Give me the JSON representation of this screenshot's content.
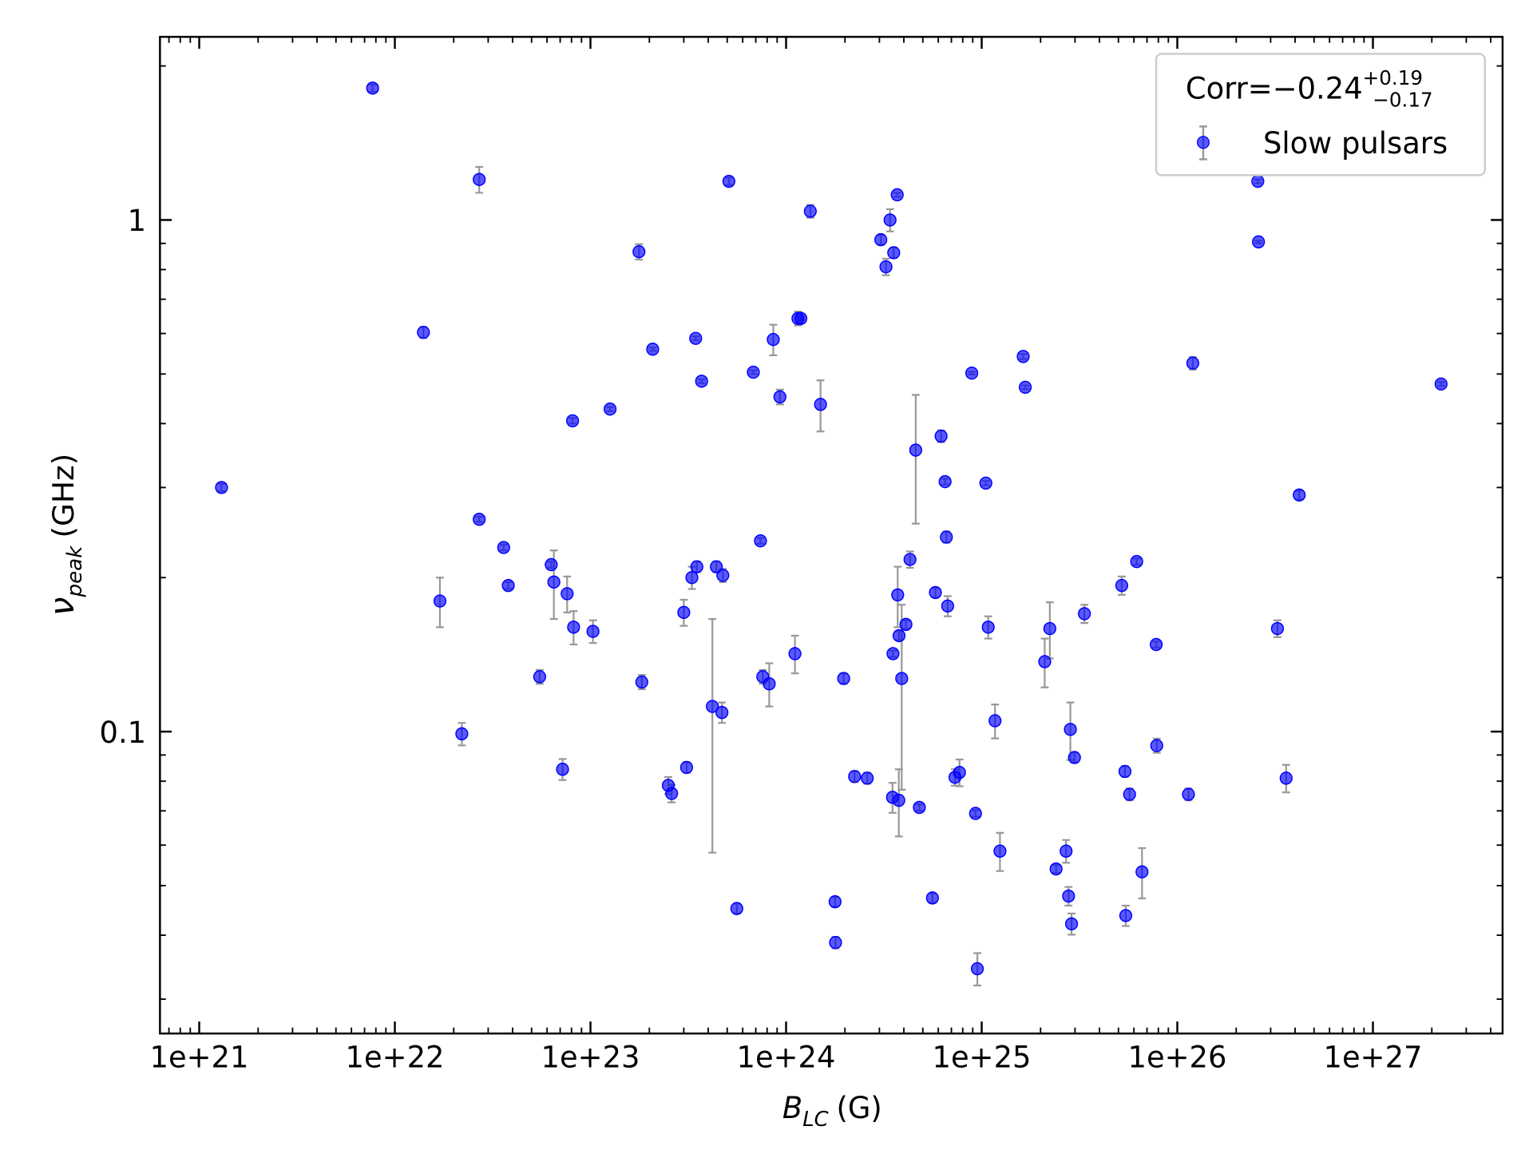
{
  "chart_data": {
    "type": "scatter",
    "x_label": {
      "base": "B",
      "sub": "LC",
      "unit": "(G)"
    },
    "y_label": {
      "base": "ν",
      "sub": "peak",
      "unit": "(GHz)"
    },
    "x_scale": "log",
    "y_scale": "log",
    "xlim": [
      6.3e+20,
      4.6e+27
    ],
    "ylim": [
      0.0257,
      2.28
    ],
    "xticks": [
      {
        "value": 1e+21,
        "label": "1e+21"
      },
      {
        "value": 1e+22,
        "label": "1e+22"
      },
      {
        "value": 1e+23,
        "label": "1e+23"
      },
      {
        "value": 1e+24,
        "label": "1e+24"
      },
      {
        "value": 1e+25,
        "label": "1e+25"
      },
      {
        "value": 1e+26,
        "label": "1e+26"
      },
      {
        "value": 1e+27,
        "label": "1e+27"
      }
    ],
    "yticks": [
      0.1,
      1
    ],
    "minor_ticks": true,
    "grid": false,
    "legend": "upper right",
    "legend_title": {
      "text": "Corr=−0.24",
      "plus": "+0.19",
      "minus": "−0.17"
    },
    "series": [
      {
        "name": "Slow pulsars",
        "color": "#0000ff",
        "error_color": "#999999",
        "x": [
          1.3e+21,
          7.7e+21,
          2.7e+22,
          1.4e+22,
          1.7e+22,
          2.2e+22,
          2.7e+22,
          3.6e+22,
          3.8e+22,
          5.5e+22,
          6.3e+22,
          6.5e+22,
          7.2e+22,
          7.6e+22,
          8.1e+22,
          8.2e+22,
          1.03e+23,
          1.26e+23,
          1.77e+23,
          1.83e+23,
          2.08e+23,
          2.5e+23,
          2.6e+23,
          3e+23,
          3.1e+23,
          3.3e+23,
          3.45e+23,
          3.5e+23,
          3.7e+23,
          4.2e+23,
          4.4e+23,
          4.7e+23,
          4.75e+23,
          5.1e+23,
          5.6e+23,
          6.8e+23,
          7.4e+23,
          7.6e+23,
          8.2e+23,
          8.6e+23,
          9.3e+23,
          1.11e+24,
          1.15e+24,
          1.19e+24,
          1.33e+24,
          1.5e+24,
          1.78e+24,
          1.79e+24,
          1.97e+24,
          2.24e+24,
          2.6e+24,
          3.05e+24,
          3.24e+24,
          3.4e+24,
          3.5e+24,
          3.52e+24,
          3.55e+24,
          3.7e+24,
          3.72e+24,
          3.77e+24,
          3.78e+24,
          3.9e+24,
          4.1e+24,
          4.3e+24,
          4.6e+24,
          4.8e+24,
          5.6e+24,
          5.8e+24,
          6.2e+24,
          6.5e+24,
          6.6e+24,
          6.7e+24,
          7.3e+24,
          7.7e+24,
          8.9e+24,
          9.3e+24,
          9.5e+24,
          1.05e+25,
          1.08e+25,
          1.17e+25,
          1.24e+25,
          1.63e+25,
          1.67e+25,
          2.1e+25,
          2.23e+25,
          2.4e+25,
          2.7e+25,
          2.78e+25,
          2.84e+25,
          2.88e+25,
          2.98e+25,
          3.35e+25,
          5.2e+25,
          5.4e+25,
          5.45e+25,
          5.7e+25,
          6.2e+25,
          6.6e+25,
          7.8e+25,
          7.85e+25,
          1.14e+26,
          1.2e+26,
          2.58e+26,
          2.6e+26,
          3.25e+26,
          3.6e+26,
          4.2e+26,
          2.23e+27
        ],
        "values": [
          0.3,
          1.81,
          1.2,
          0.603,
          0.18,
          0.099,
          0.26,
          0.229,
          0.193,
          0.128,
          0.212,
          0.196,
          0.0844,
          0.186,
          0.405,
          0.16,
          0.157,
          0.427,
          0.867,
          0.125,
          0.559,
          0.0785,
          0.0757,
          0.171,
          0.0851,
          0.2,
          0.587,
          0.21,
          0.484,
          0.112,
          0.21,
          0.109,
          0.202,
          1.19,
          0.0451,
          0.504,
          0.236,
          0.128,
          0.124,
          0.584,
          0.451,
          0.142,
          0.642,
          0.642,
          1.04,
          0.436,
          0.0465,
          0.0387,
          0.127,
          0.0817,
          0.0811,
          0.915,
          0.81,
          1.0,
          0.0744,
          0.142,
          0.863,
          1.12,
          0.185,
          0.0734,
          0.154,
          0.127,
          0.162,
          0.217,
          0.355,
          0.0711,
          0.0473,
          0.187,
          0.378,
          0.308,
          0.24,
          0.176,
          0.0814,
          0.0832,
          0.502,
          0.0692,
          0.0344,
          0.306,
          0.16,
          0.105,
          0.0584,
          0.541,
          0.471,
          0.137,
          0.159,
          0.0539,
          0.0584,
          0.0477,
          0.101,
          0.0421,
          0.089,
          0.17,
          0.193,
          0.0836,
          0.0437,
          0.0754,
          0.215,
          0.0532,
          0.148,
          0.0939,
          0.0754,
          0.525,
          1.19,
          0.906,
          0.159,
          0.0811,
          0.29,
          0.478
        ],
        "errors": [
          0.005,
          0.03,
          0.07,
          0.015,
          0.02,
          0.005,
          0.003,
          0.003,
          0.003,
          0.004,
          0.003,
          0.03,
          0.004,
          0.015,
          0.005,
          0.012,
          0.008,
          0.004,
          0.03,
          0.004,
          0.004,
          0.003,
          0.003,
          0.01,
          0.002,
          0.01,
          0.005,
          0.005,
          0.004,
          0.054,
          0.005,
          0.005,
          0.006,
          0.02,
          0.001,
          0.004,
          0.003,
          0.004,
          0.012,
          0.04,
          0.015,
          0.012,
          0.02,
          0.005,
          0.03,
          0.05,
          0.001,
          0.001,
          0.003,
          0.002,
          0.002,
          0.02,
          0.03,
          0.05,
          0.005,
          0.002,
          0.02,
          0.01,
          0.025,
          0.011,
          0.003,
          0.05,
          0.003,
          0.008,
          0.1,
          0.001,
          0.001,
          0.004,
          0.01,
          0.004,
          0.006,
          0.008,
          0.003,
          0.005,
          0.003,
          0.001,
          0.0025,
          0.003,
          0.008,
          0.008,
          0.005,
          0.006,
          0.004,
          0.015,
          0.02,
          0.001,
          0.003,
          0.002,
          0.013,
          0.002,
          0.002,
          0.007,
          0.008,
          0.002,
          0.002,
          0.002,
          0.003,
          0.006,
          0.002,
          0.003,
          0.002,
          0.015,
          0.01,
          0.005,
          0.006,
          0.005,
          0.006,
          0.004
        ]
      }
    ]
  }
}
